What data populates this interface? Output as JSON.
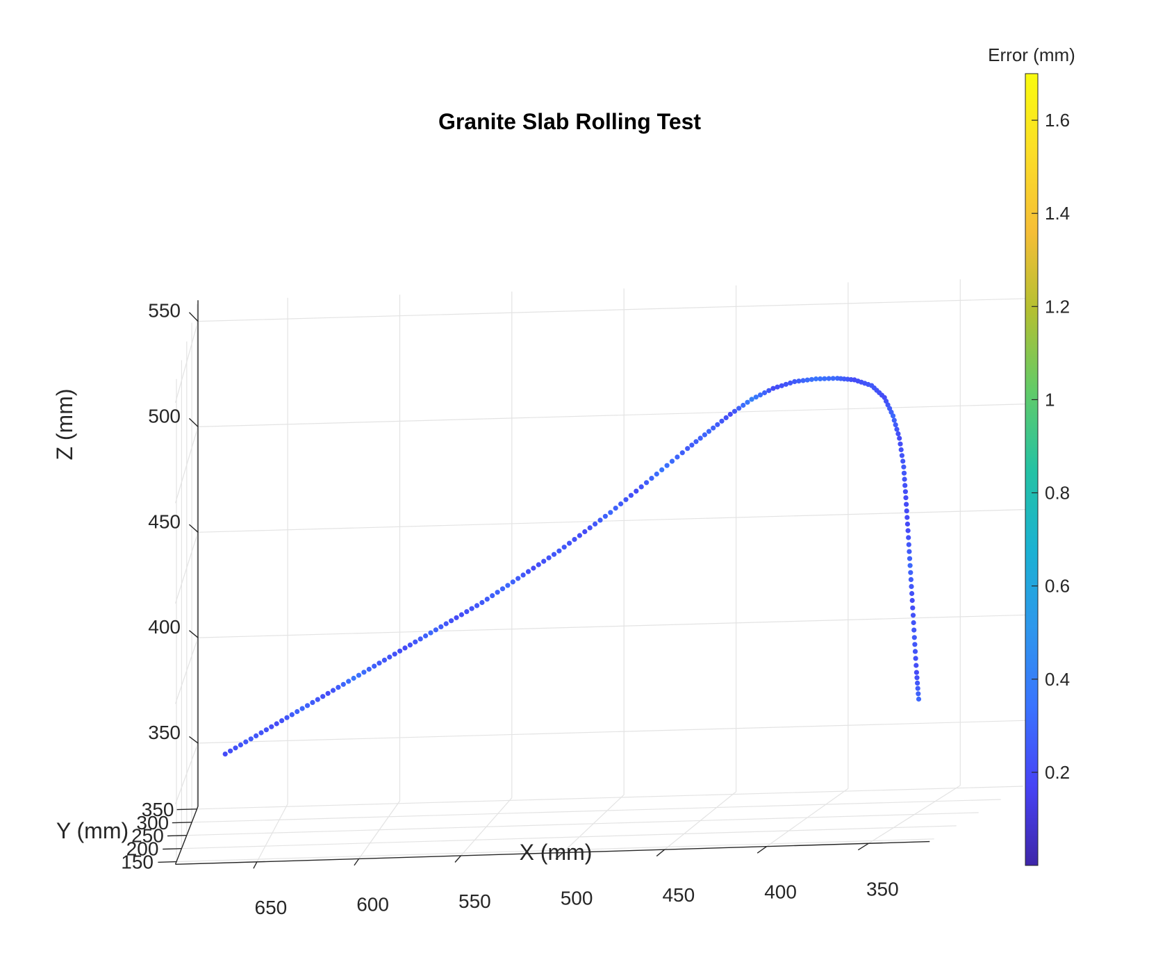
{
  "chart_data": {
    "type": "scatter",
    "projection": "3d",
    "title": "Granite Slab Rolling Test",
    "xlabel": "X (mm)",
    "ylabel": "Y (mm)",
    "zlabel": "Z (mm)",
    "xlim": [
      320,
      690
    ],
    "ylim": [
      140,
      360
    ],
    "zlim": [
      320,
      560
    ],
    "xticks": [
      650,
      600,
      550,
      500,
      450,
      400,
      350
    ],
    "yticks": [
      350,
      300,
      250,
      200,
      150
    ],
    "zticks": [
      550,
      500,
      450,
      400,
      350
    ],
    "x_direction": "reversed",
    "grid": true,
    "colorbar": {
      "label": "Error (mm)",
      "ticks": [
        1.6,
        1.4,
        1.2,
        1,
        0.8,
        0.6,
        0.4,
        0.2
      ],
      "range": [
        0,
        1.7
      ],
      "colormap": "parula",
      "colors": [
        "#3e26a8",
        "#4743f5",
        "#3a73fe",
        "#2e97ec",
        "#1bb2d2",
        "#25c2a3",
        "#62cb68",
        "#b3c032",
        "#f5be37",
        "#fbdd28",
        "#f9fb0e"
      ]
    },
    "series": [
      {
        "x": [
          672,
          660,
          648,
          636,
          624,
          612,
          600,
          588,
          576,
          564,
          552,
          540,
          528,
          516,
          504,
          492,
          480,
          468,
          456,
          446,
          436,
          426,
          416,
          406,
          396,
          386,
          378,
          370,
          364,
          360,
          357,
          355,
          354,
          353,
          352,
          351,
          350,
          349,
          348
        ],
        "y": [
          250,
          250,
          250,
          250,
          250,
          250,
          250,
          250,
          250,
          250,
          250,
          250,
          250,
          250,
          250,
          250,
          250,
          250,
          250,
          250,
          250,
          250,
          250,
          250,
          250,
          250,
          250,
          250,
          250,
          250,
          250,
          250,
          250,
          250,
          250,
          250,
          250,
          250,
          250
        ],
        "z": [
          359,
          366,
          373,
          380,
          387,
          394,
          401,
          408,
          415,
          422,
          429,
          437,
          445,
          453,
          462,
          471,
          481,
          491,
          501,
          509,
          517,
          524,
          529,
          532,
          533,
          533,
          532,
          529,
          523,
          514,
          503,
          489,
          474,
          458,
          441,
          424,
          406,
          389,
          376
        ],
        "error": [
          0.2,
          0.25,
          0.2,
          0.3,
          0.2,
          0.35,
          0.25,
          0.2,
          0.3,
          0.2,
          0.25,
          0.3,
          0.2,
          0.25,
          0.2,
          0.3,
          0.2,
          0.35,
          0.25,
          0.3,
          0.2,
          0.4,
          0.2,
          0.25,
          0.35,
          0.3,
          0.2,
          0.25,
          0.2,
          0.3,
          0.2,
          0.25,
          0.2,
          0.2,
          0.3,
          0.2,
          0.25,
          0.2,
          0.3
        ]
      }
    ]
  }
}
